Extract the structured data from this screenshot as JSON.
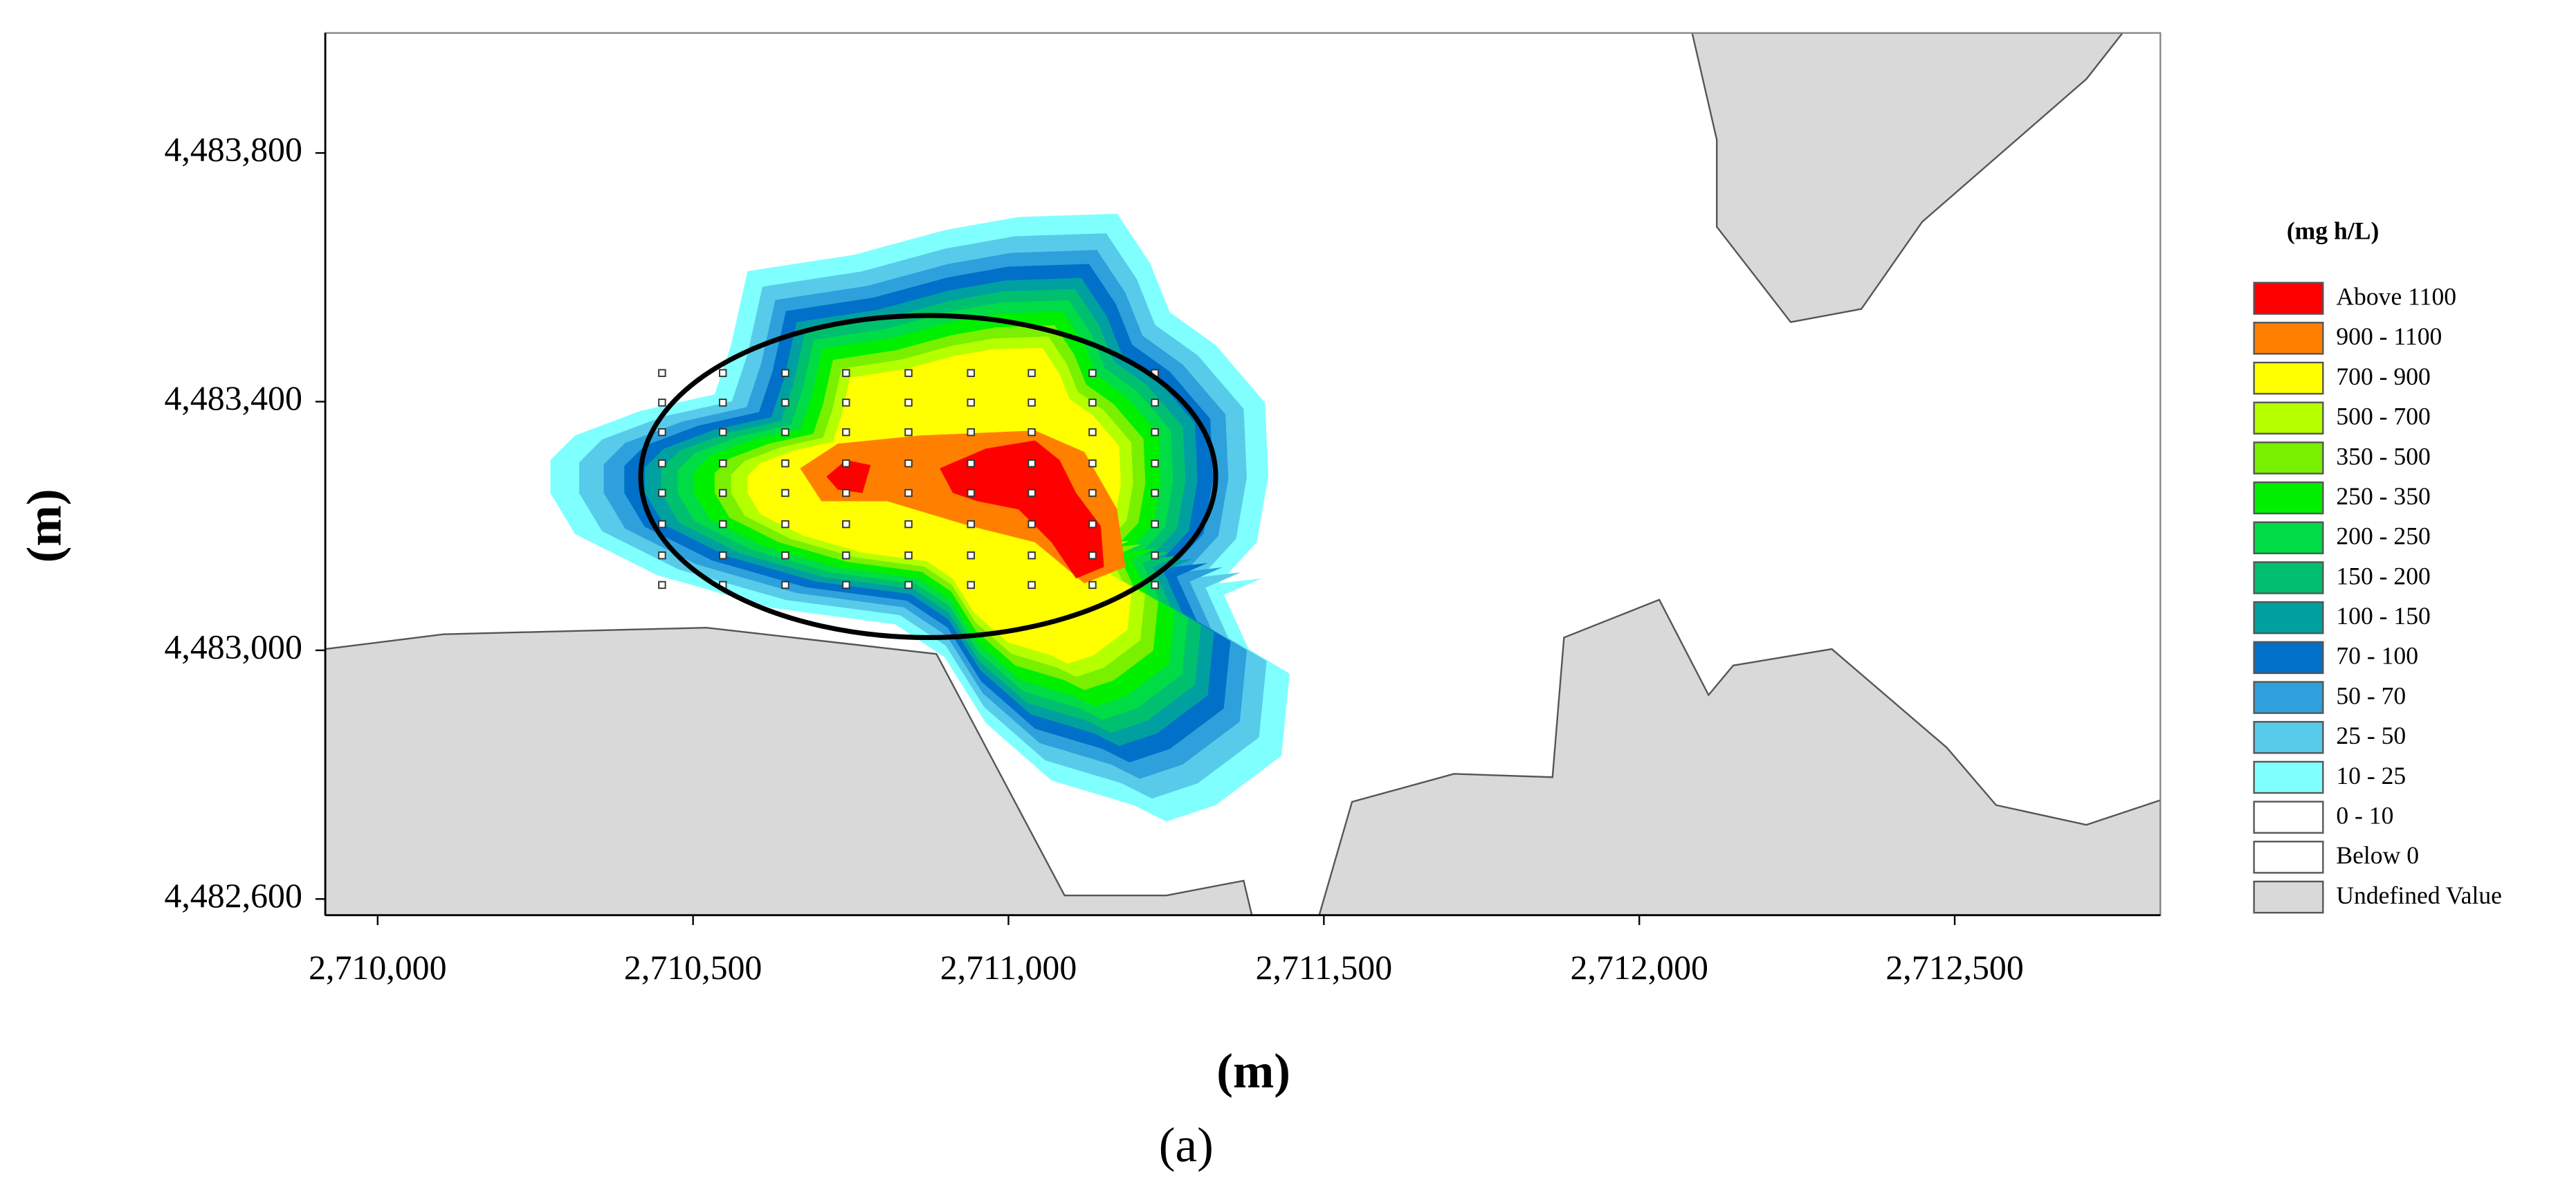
{
  "chart_data": {
    "type": "contour",
    "xlabel": "(m)",
    "ylabel": "(m)",
    "caption": "(a)",
    "xlim": [
      2709917,
      2712826
    ],
    "ylim": [
      4482574,
      4483993
    ],
    "xticks": [
      {
        "value": 2710000,
        "label": "2,710,000"
      },
      {
        "value": 2710500,
        "label": "2,710,500"
      },
      {
        "value": 2711000,
        "label": "2,711,000"
      },
      {
        "value": 2711500,
        "label": "2,711,500"
      },
      {
        "value": 2712000,
        "label": "2,712,000"
      },
      {
        "value": 2712500,
        "label": "2,712,500"
      }
    ],
    "yticks": [
      {
        "value": 4482600,
        "label": "4,482,600"
      },
      {
        "value": 4483000,
        "label": "4,483,000"
      },
      {
        "value": 4483400,
        "label": "4,483,400"
      },
      {
        "value": 4483800,
        "label": "4,483,800"
      }
    ],
    "legend": {
      "title": "(mg h/L)",
      "position": "right",
      "items": [
        {
          "name": "Above 1100",
          "color": "#ff0000"
        },
        {
          "name": "900 - 1100",
          "color": "#ff8000"
        },
        {
          "name": "700 - 900",
          "color": "#ffff00"
        },
        {
          "name": "500 - 700",
          "color": "#b4ff00"
        },
        {
          "name": "350 - 500",
          "color": "#78f000"
        },
        {
          "name": "250 - 350",
          "color": "#00f000"
        },
        {
          "name": "200 - 250",
          "color": "#00dc46"
        },
        {
          "name": "150 - 200",
          "color": "#00c070"
        },
        {
          "name": "100 - 150",
          "color": "#00a0a0"
        },
        {
          "name": "70 - 100",
          "color": "#0070c8"
        },
        {
          "name": "50 - 70",
          "color": "#2ea0dc"
        },
        {
          "name": "25 - 50",
          "color": "#58cbea"
        },
        {
          "name": "10 - 25",
          "color": "#80ffff"
        },
        {
          "name": "0 - 10",
          "color": "#ffffff"
        },
        {
          "name": "Below 0",
          "color": "#ffffff"
        },
        {
          "name": "Undefined Value",
          "color": "#d9d9d9"
        }
      ]
    }
  }
}
